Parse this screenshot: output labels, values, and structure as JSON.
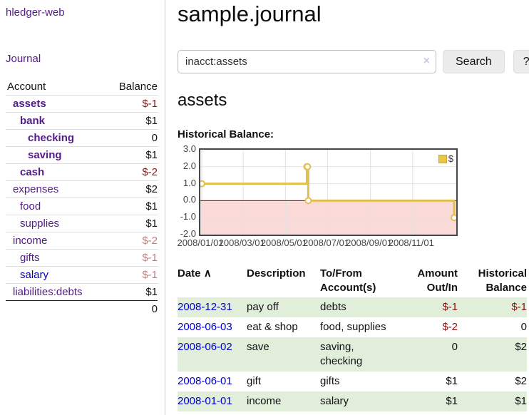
{
  "sidebar": {
    "app_title": "hledger-web",
    "nav": {
      "journal": "Journal"
    },
    "table": {
      "headers": {
        "account": "Account",
        "balance": "Balance"
      },
      "accounts": [
        {
          "name": "assets",
          "balance": "$-1"
        },
        {
          "name": "bank",
          "balance": "$1"
        },
        {
          "name": "checking",
          "balance": "0"
        },
        {
          "name": "saving",
          "balance": "$1"
        },
        {
          "name": "cash",
          "balance": "$-2"
        },
        {
          "name": "expenses",
          "balance": "$2"
        },
        {
          "name": "food",
          "balance": "$1"
        },
        {
          "name": "supplies",
          "balance": "$1"
        },
        {
          "name": "income",
          "balance": "$-2"
        },
        {
          "name": "gifts",
          "balance": "$-1"
        },
        {
          "name": "salary",
          "balance": "$-1"
        },
        {
          "name": "liabilities:debts",
          "balance": "$1"
        }
      ],
      "total": "0"
    }
  },
  "header": {
    "title": "sample.journal"
  },
  "search": {
    "value": "inacct:assets",
    "clear_icon": "×",
    "button_label": "Search",
    "help_label": "?"
  },
  "account_page": {
    "heading": "assets",
    "chart_label": "Historical Balance:"
  },
  "chart_data": {
    "type": "line",
    "step": true,
    "title": "Historical Balance",
    "series": [
      {
        "name": "$",
        "color": "#e3c04d",
        "points": [
          {
            "x": "2008-01-01",
            "y": 1
          },
          {
            "x": "2008-06-01",
            "y": 2
          },
          {
            "x": "2008-06-02",
            "y": 2
          },
          {
            "x": "2008-06-03",
            "y": 0
          },
          {
            "x": "2008-12-31",
            "y": -1
          }
        ]
      }
    ],
    "xlim": [
      "2008-01-01",
      "2008-12-31"
    ],
    "ylim": [
      -2,
      3
    ],
    "yticks": [
      "3.0",
      "2.0",
      "1.0",
      "0.0",
      "-1.0",
      "-2.0"
    ],
    "xticks": [
      {
        "x": "2008-01-01",
        "label": "2008/01/01"
      },
      {
        "x": "2008-03-01",
        "label": "2008/03/01"
      },
      {
        "x": "2008-05-01",
        "label": "2008/05/01"
      },
      {
        "x": "2008-07-01",
        "label": "2008/07/01"
      },
      {
        "x": "2008-09-01",
        "label": "2008/09/01"
      },
      {
        "x": "2008-11-01",
        "label": "2008/11/01"
      }
    ],
    "grid": true,
    "negative_fill": "#fbdada",
    "zero_line_color": "#990000",
    "legend": {
      "label": "$",
      "position": "top-right",
      "swatch_color": "#e9c749"
    }
  },
  "register": {
    "headers": {
      "date": "Date",
      "sort_indicator": "∧",
      "description": "Description",
      "tofrom_l1": "To/From",
      "tofrom_l2": "Account(s)",
      "amount_l1": "Amount",
      "amount_l2": "Out/In",
      "hist_l1": "Historical",
      "hist_l2": "Balance"
    },
    "rows": [
      {
        "date": "2008-12-31",
        "description": "pay off",
        "accounts": "debts",
        "amount": "$-1",
        "balance": "$-1"
      },
      {
        "date": "2008-06-03",
        "description": "eat & shop",
        "accounts": "food, supplies",
        "amount": "$-2",
        "balance": "0"
      },
      {
        "date": "2008-06-02",
        "description": "save",
        "accounts": "saving,\nchecking",
        "amount": "0",
        "balance": "$2"
      },
      {
        "date": "2008-06-01",
        "description": "gift",
        "accounts": "gifts",
        "amount": "$1",
        "balance": "$2"
      },
      {
        "date": "2008-01-01",
        "description": "income",
        "accounts": "salary",
        "amount": "$1",
        "balance": "$1"
      }
    ]
  }
}
